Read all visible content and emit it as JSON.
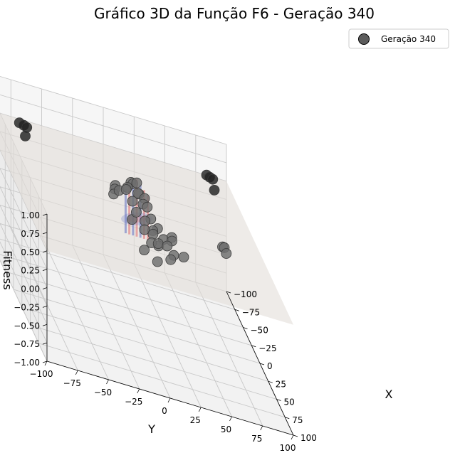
{
  "chart_data": {
    "type": "scatter",
    "title": "Gráfico 3D da Função F6 - Geração 340",
    "xlabel": "X",
    "ylabel": "Y",
    "zlabel": "Fitness",
    "xlim": [
      -100,
      100
    ],
    "ylim": [
      -100,
      100
    ],
    "zlim": [
      -1,
      1
    ],
    "x_ticks": [
      "−100",
      "−75",
      "−50",
      "−25",
      "0",
      "25",
      "50",
      "75",
      "100"
    ],
    "y_ticks": [
      "−100",
      "−75",
      "−50",
      "−25",
      "0",
      "25",
      "50",
      "75",
      "100"
    ],
    "z_ticks": [
      "−1.00",
      "−0.75",
      "−0.50",
      "−0.25",
      "0.00",
      "0.25",
      "0.50",
      "0.75",
      "1.00"
    ],
    "legend": {
      "position": "top-right",
      "label": "Geração 340"
    },
    "surface_colors": {
      "plane": "#e3ddd8",
      "center_peak": "#e07070",
      "center_trough": "#6070c0"
    },
    "point_color": "#6e6e6e",
    "series": [
      {
        "name": "Geração 340",
        "points": [
          [
            -80,
            -70,
            0.6
          ],
          [
            -82,
            -73,
            0.6
          ],
          [
            -78,
            -68,
            0.6
          ],
          [
            -68,
            -72,
            0.56
          ],
          [
            -84,
            82,
            0.62
          ],
          [
            -86,
            80,
            0.62
          ],
          [
            -82,
            84,
            0.62
          ],
          [
            -70,
            82,
            0.58
          ],
          [
            -10,
            -2,
            0.85
          ],
          [
            -12,
            0,
            0.82
          ],
          [
            -6,
            -6,
            0.8
          ],
          [
            -4,
            2,
            0.78
          ],
          [
            -2,
            -8,
            0.8
          ],
          [
            -8,
            4,
            0.74
          ],
          [
            2,
            -4,
            0.7
          ],
          [
            0,
            0,
            0.95
          ],
          [
            4,
            4,
            0.72
          ],
          [
            2,
            8,
            0.68
          ],
          [
            -6,
            8,
            0.72
          ],
          [
            6,
            -2,
            0.6
          ],
          [
            10,
            4,
            0.55
          ],
          [
            8,
            -6,
            0.5
          ],
          [
            12,
            10,
            0.42
          ],
          [
            -2,
            12,
            0.5
          ],
          [
            4,
            12,
            0.4
          ],
          [
            16,
            2,
            0.48
          ],
          [
            20,
            12,
            0.38
          ],
          [
            14,
            14,
            0.3
          ],
          [
            30,
            -2,
            0.32
          ],
          [
            22,
            6,
            0.38
          ],
          [
            6,
            20,
            0.34
          ],
          [
            -4,
            18,
            0.38
          ],
          [
            10,
            22,
            0.3
          ],
          [
            2,
            28,
            0.32
          ],
          [
            -10,
            -16,
            0.62
          ],
          [
            -14,
            -14,
            0.66
          ],
          [
            -16,
            -10,
            0.64
          ],
          [
            -20,
            -12,
            0.66
          ],
          [
            28,
            20,
            0.28
          ],
          [
            22,
            24,
            0.3
          ],
          [
            40,
            6,
            0.3
          ],
          [
            8,
            36,
            0.2
          ],
          [
            -6,
            30,
            0.3
          ],
          [
            6,
            68,
            0.48
          ],
          [
            4,
            70,
            0.46
          ],
          [
            10,
            70,
            0.44
          ]
        ]
      }
    ]
  }
}
